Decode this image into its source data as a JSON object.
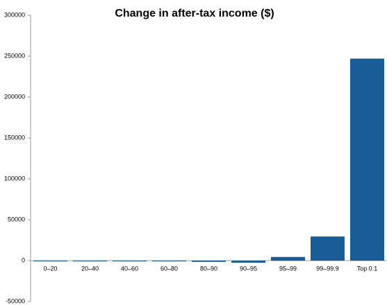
{
  "chart_data": {
    "type": "bar",
    "title": "Change in after-tax income ($)",
    "categories": [
      "0–20",
      "20–40",
      "40–60",
      "60–80",
      "80–90",
      "90–95",
      "95–99",
      "99–99.9",
      "Top 0.1"
    ],
    "values": [
      -200,
      -300,
      -400,
      -600,
      -1500,
      -2500,
      4500,
      29500,
      247000
    ],
    "color": "#185c97",
    "ylim": [
      -50000,
      300000
    ],
    "yticks": [
      -50000,
      0,
      50000,
      100000,
      150000,
      200000,
      250000,
      300000
    ],
    "grid": false
  }
}
